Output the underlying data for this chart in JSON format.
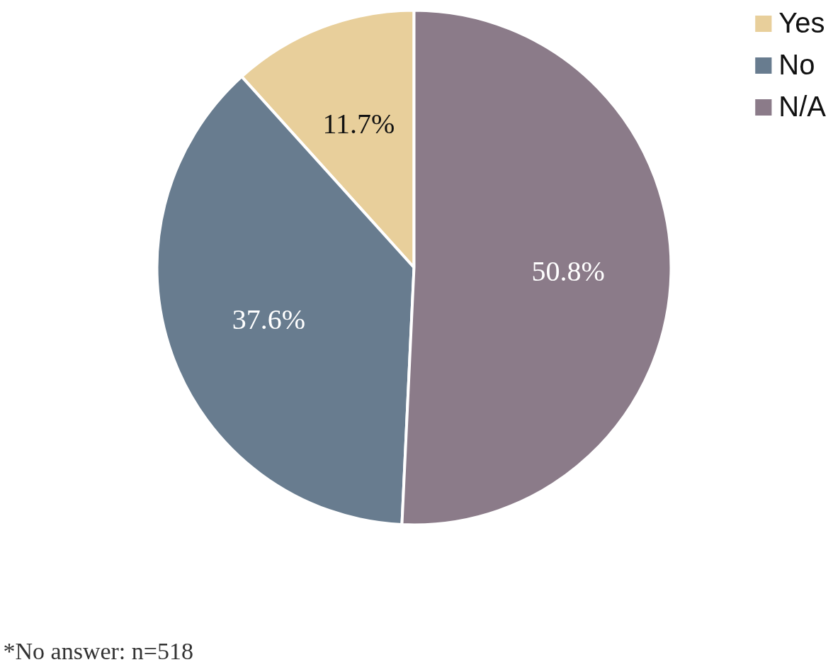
{
  "chart_data": {
    "type": "pie",
    "categories": [
      "Yes",
      "No",
      "N/A"
    ],
    "values": [
      11.7,
      37.6,
      50.8
    ],
    "colors": [
      "#e8cf9b",
      "#687c8f",
      "#8b7b89"
    ],
    "value_labels": [
      "11.7%",
      "37.6%",
      "50.8%"
    ],
    "legend": "top right",
    "annotations": [
      "*No answer: n=518"
    ]
  }
}
